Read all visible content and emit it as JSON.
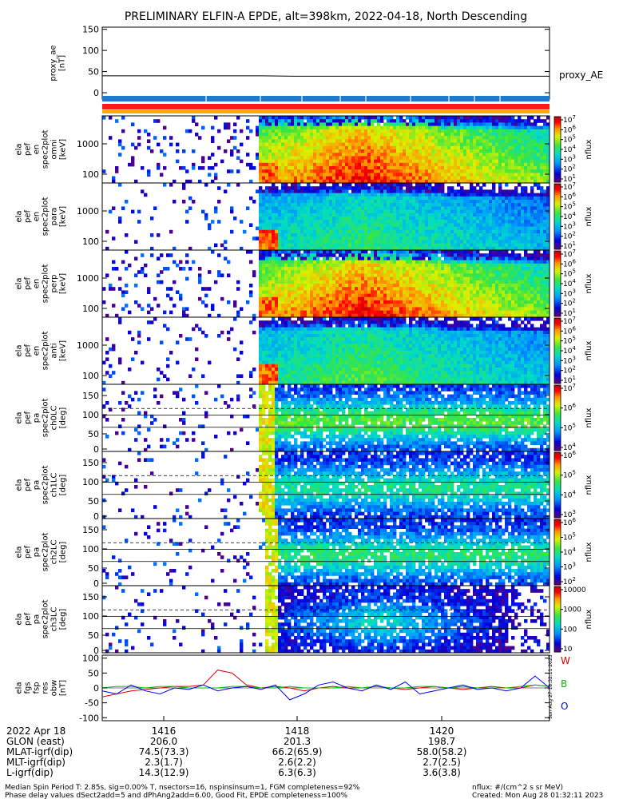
{
  "title": "PRELIMINARY ELFIN-A EPDE, alt=398km, 2022-04-18, North Descending",
  "colors": {
    "red": "#e00000",
    "green": "#00c000",
    "blue": "#0000ff",
    "bar_blue": "#1e78d2",
    "bar_red": "#ff1a1a",
    "bar_orange": "#ffa500"
  },
  "chart_data": [
    {
      "type": "line",
      "name": "proxy_ae",
      "ylabel": "proxy_ae\n[nT]",
      "yticks": [
        0,
        50,
        100,
        150
      ],
      "ylim": [
        -15,
        155
      ],
      "series": [
        {
          "name": "proxy_AE",
          "values": [
            40,
            40,
            40,
            40,
            40,
            40,
            39,
            39,
            39,
            39,
            39,
            39,
            39,
            39,
            39
          ]
        }
      ]
    },
    {
      "type": "heatmap",
      "ylabel": "ela\npef\nen\nspec2plot\nomni\n[keV]",
      "yticks": [
        "1000",
        "100"
      ],
      "colorbar_ticks": [
        "10^7",
        "10^6",
        "10^5",
        "10^4",
        "10^3",
        "10^2",
        "10^1"
      ],
      "colorbar_label": "nflux"
    },
    {
      "type": "heatmap",
      "ylabel": "ela\npef\nen\nspec2plot\npara\n[keV]",
      "yticks": [
        "1000",
        "100"
      ],
      "colorbar_ticks": [
        "10^7",
        "10^6",
        "10^5",
        "10^4",
        "10^3",
        "10^2",
        "10^1"
      ],
      "colorbar_label": "nflux"
    },
    {
      "type": "heatmap",
      "ylabel": "ela\npef\nen\nspec2plot\nperp\n[keV]",
      "yticks": [
        "1000",
        "100"
      ],
      "colorbar_ticks": [
        "10^7",
        "10^6",
        "10^5",
        "10^4",
        "10^3",
        "10^2",
        "10^1"
      ],
      "colorbar_label": "nflux"
    },
    {
      "type": "heatmap",
      "ylabel": "ela\npef\nen\nspec2plot\nanti\n[keV]",
      "yticks": [
        "1000",
        "100"
      ],
      "colorbar_ticks": [
        "10^7",
        "10^6",
        "10^5",
        "10^4",
        "10^3",
        "10^2",
        "10^1"
      ],
      "colorbar_label": "nflux"
    },
    {
      "type": "heatmap",
      "ylabel": "ela\npef\npa\nspec2plot\nch0LC\n[deg]",
      "yticks": [
        "150",
        "100",
        "50",
        "0"
      ],
      "colorbar_ticks": [
        "10^7",
        "10^6",
        "10^5",
        "10^4"
      ],
      "colorbar_label": "nflux"
    },
    {
      "type": "heatmap",
      "ylabel": "ela\npef\npa\nspec2plot\nch1LC\n[deg]",
      "yticks": [
        "150",
        "100",
        "50",
        "0"
      ],
      "colorbar_ticks": [
        "10^6",
        "10^5",
        "10^4",
        "10^3"
      ],
      "colorbar_label": "nflux"
    },
    {
      "type": "heatmap",
      "ylabel": "ela\npef\npa\nspec2plot\nch2LC\n[deg]",
      "yticks": [
        "150",
        "100",
        "50",
        "0"
      ],
      "colorbar_ticks": [
        "10^6",
        "10^5",
        "10^4",
        "10^3",
        "10^2"
      ],
      "colorbar_label": "nflux"
    },
    {
      "type": "heatmap",
      "ylabel": "ela\npef\npa\nspec2plot\nch3LC\n[deg]",
      "yticks": [
        "150",
        "100",
        "50",
        "0"
      ],
      "colorbar_ticks": [
        "10000",
        "1000",
        "100",
        "10"
      ],
      "colorbar_label": "nflux"
    },
    {
      "type": "line",
      "ylabel": "ela\nfgs\nfsp\nres\nobw\n[nT]",
      "yticks": [
        100,
        50,
        0,
        -50,
        -100
      ],
      "ylim": [
        -110,
        110
      ],
      "series": [
        {
          "name": "W",
          "values": [
            -30,
            -20,
            -10,
            -5,
            0,
            5,
            5,
            10,
            60,
            50,
            10,
            0,
            5,
            0,
            -10,
            0,
            5,
            0,
            0,
            5,
            0,
            -5,
            0,
            5,
            0,
            -5,
            0,
            5,
            0,
            0,
            10,
            5
          ]
        },
        {
          "name": "B",
          "values": [
            0,
            5,
            5,
            0,
            5,
            5,
            0,
            0,
            0,
            5,
            5,
            0,
            0,
            5,
            0,
            0,
            0,
            5,
            0,
            5,
            0,
            0,
            5,
            5,
            0,
            5,
            0,
            0,
            0,
            5,
            10,
            5
          ]
        },
        {
          "name": "O",
          "values": [
            -10,
            -20,
            10,
            -10,
            -20,
            0,
            -5,
            10,
            -10,
            0,
            5,
            -5,
            10,
            -40,
            -20,
            10,
            20,
            0,
            -10,
            10,
            -5,
            20,
            -20,
            -10,
            0,
            10,
            -5,
            0,
            -10,
            0,
            40,
            0
          ]
        }
      ]
    }
  ],
  "right_label_proxy": "proxy_AE",
  "xticks": [
    "1416",
    "1418",
    "1420"
  ],
  "footer_rows": [
    {
      "label": "2022 Apr 18",
      "v1": "1416",
      "v2": "1418",
      "v3": "1420"
    },
    {
      "label": "GLON (east)",
      "v1": "206.0",
      "v2": "201.3",
      "v3": "198.7"
    },
    {
      "label": "MLAT-igrf(dip)",
      "v1": "74.5(73.3)",
      "v2": "66.2(65.9)",
      "v3": "58.0(58.2)"
    },
    {
      "label": "MLT-igrf(dip)",
      "v1": "2.3(1.7)",
      "v2": "2.6(2.2)",
      "v3": "2.7(2.5)"
    },
    {
      "label": "L-igrf(dip)",
      "v1": "14.3(12.9)",
      "v2": "6.3(6.3)",
      "v3": "3.6(3.8)"
    }
  ],
  "bottom_left_1": "Median Spin Period T: 2.85s, sig=0.00% T, nsectors=16, nspinsinsum=1, FGM completeness=92%",
  "bottom_left_2": "Phase delay values dSect2add=5 and dPhAng2add=6.00, Good Fit, EPDE completeness=100%",
  "bottom_right_1": "nflux: #/(cm^2 s sr MeV)",
  "bottom_right_2": "Created: Mon Aug 28 01:32:11 2023",
  "side_stamp": "Sun Aug 27 18:32:11 2023"
}
